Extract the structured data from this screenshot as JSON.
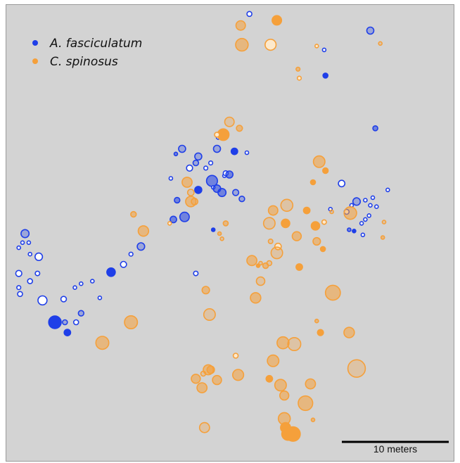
{
  "chart_data": {
    "type": "scatter",
    "title": "",
    "xlabel": "",
    "ylabel": "",
    "units": "meters",
    "xlim": [
      0,
      36.0
    ],
    "ylim": [
      0,
      35.6
    ],
    "legend": {
      "placement": "top-left",
      "entries": [
        {
          "name": "A. fasciculatum",
          "color": "#1f3fe8"
        },
        {
          "name": "C. spinosus",
          "color": "#f5a03b"
        }
      ]
    },
    "scale_bar": {
      "label": "10 meters",
      "length": 10
    },
    "style": {
      "fill_levels": {
        "solid": 1.0,
        "medium": 0.55,
        "light": 0.3,
        "pale": 0.08
      },
      "series_colors": {
        "A. fasciculatum": {
          "stroke": "#1f3fe8",
          "fill": "#1f3fe8",
          "pale_fill": "#ffffff"
        },
        "C. spinosus": {
          "stroke": "#f5a03b",
          "fill": "#f5a03b",
          "pale_fill": "#fde9cc"
        }
      }
    },
    "series": [
      {
        "name": "A. fasciculatum",
        "points": [
          [
            19.5,
            34.9,
            0.2,
            "pale"
          ],
          [
            29.2,
            33.6,
            0.28,
            "light"
          ],
          [
            25.5,
            32.1,
            0.12,
            "pale"
          ],
          [
            25.6,
            30.1,
            0.2,
            "solid"
          ],
          [
            29.6,
            26.0,
            0.2,
            "medium"
          ],
          [
            17.0,
            25.3,
            0.16,
            "pale"
          ],
          [
            14.1,
            24.4,
            0.28,
            "light"
          ],
          [
            13.6,
            24.0,
            0.14,
            "medium"
          ],
          [
            16.9,
            24.4,
            0.28,
            "light"
          ],
          [
            15.4,
            23.8,
            0.28,
            "light"
          ],
          [
            18.3,
            24.2,
            0.26,
            "solid"
          ],
          [
            19.3,
            24.1,
            0.12,
            "pale"
          ],
          [
            15.2,
            23.3,
            0.22,
            "light"
          ],
          [
            16.4,
            23.3,
            0.16,
            "pale"
          ],
          [
            14.7,
            22.9,
            0.24,
            "pale"
          ],
          [
            16.0,
            22.9,
            0.16,
            "pale"
          ],
          [
            17.5,
            22.3,
            0.12,
            "pale"
          ],
          [
            17.6,
            22.5,
            0.2,
            "pale"
          ],
          [
            17.9,
            22.4,
            0.28,
            "medium"
          ],
          [
            13.2,
            22.1,
            0.12,
            "pale"
          ],
          [
            16.5,
            21.9,
            0.44,
            "medium"
          ],
          [
            16.6,
            21.4,
            0.12,
            "pale"
          ],
          [
            15.4,
            21.2,
            0.28,
            "solid"
          ],
          [
            16.9,
            21.3,
            0.3,
            "medium"
          ],
          [
            17.3,
            21.0,
            0.32,
            "medium"
          ],
          [
            18.4,
            21.0,
            0.24,
            "light"
          ],
          [
            13.7,
            20.4,
            0.22,
            "medium"
          ],
          [
            18.9,
            20.5,
            0.22,
            "light"
          ],
          [
            26.9,
            21.7,
            0.26,
            "pale"
          ],
          [
            30.6,
            21.2,
            0.1,
            "pale"
          ],
          [
            28.1,
            20.3,
            0.3,
            "light"
          ],
          [
            28.8,
            20.4,
            0.12,
            "pale"
          ],
          [
            29.4,
            20.6,
            0.14,
            "pale"
          ],
          [
            27.7,
            20.0,
            0.12,
            "pale"
          ],
          [
            29.2,
            20.0,
            0.14,
            "pale"
          ],
          [
            29.7,
            19.9,
            0.14,
            "pale"
          ],
          [
            26.0,
            19.7,
            0.12,
            "pale"
          ],
          [
            27.3,
            19.5,
            0.2,
            "pale"
          ],
          [
            29.1,
            19.2,
            0.14,
            "pale"
          ],
          [
            13.4,
            18.9,
            0.26,
            "medium"
          ],
          [
            14.3,
            19.1,
            0.38,
            "medium"
          ],
          [
            28.5,
            18.6,
            0.12,
            "pale"
          ],
          [
            28.8,
            18.9,
            0.12,
            "pale"
          ],
          [
            16.6,
            18.1,
            0.12,
            "solid"
          ],
          [
            27.5,
            18.1,
            0.14,
            "medium"
          ],
          [
            27.9,
            18.0,
            0.12,
            "solid"
          ],
          [
            28.6,
            17.7,
            0.12,
            "pale"
          ],
          [
            1.5,
            17.8,
            0.32,
            "light"
          ],
          [
            1.3,
            17.1,
            0.14,
            "pale"
          ],
          [
            1.8,
            17.1,
            0.12,
            "pale"
          ],
          [
            1.0,
            16.7,
            0.14,
            "pale"
          ],
          [
            1.9,
            16.2,
            0.14,
            "pale"
          ],
          [
            2.6,
            16.0,
            0.3,
            "pale"
          ],
          [
            10.8,
            16.8,
            0.3,
            "light"
          ],
          [
            10.0,
            16.2,
            0.16,
            "pale"
          ],
          [
            9.4,
            15.4,
            0.24,
            "pale"
          ],
          [
            8.4,
            14.8,
            0.34,
            "solid"
          ],
          [
            1.0,
            14.7,
            0.24,
            "pale"
          ],
          [
            2.5,
            14.7,
            0.18,
            "pale"
          ],
          [
            15.2,
            14.7,
            0.18,
            "pale"
          ],
          [
            6.9,
            14.1,
            0.12,
            "pale"
          ],
          [
            1.9,
            14.1,
            0.2,
            "pale"
          ],
          [
            6.0,
            13.9,
            0.12,
            "pale"
          ],
          [
            5.5,
            13.6,
            0.12,
            "pale"
          ],
          [
            1.0,
            13.6,
            0.16,
            "pale"
          ],
          [
            1.1,
            13.1,
            0.2,
            "pale"
          ],
          [
            2.9,
            12.6,
            0.36,
            "pale"
          ],
          [
            4.6,
            12.7,
            0.22,
            "pale"
          ],
          [
            7.5,
            12.8,
            0.12,
            "pale"
          ],
          [
            6.0,
            11.6,
            0.22,
            "light"
          ],
          [
            3.9,
            10.9,
            0.5,
            "solid"
          ],
          [
            4.7,
            10.9,
            0.2,
            "light"
          ],
          [
            5.6,
            10.9,
            0.2,
            "pale"
          ],
          [
            4.9,
            10.1,
            0.26,
            "solid"
          ]
        ]
      },
      {
        "name": "C. spinosus",
        "points": [
          [
            18.8,
            34.0,
            0.38,
            "medium"
          ],
          [
            21.7,
            34.4,
            0.38,
            "solid"
          ],
          [
            18.9,
            32.5,
            0.5,
            "medium"
          ],
          [
            21.2,
            32.5,
            0.44,
            "pale"
          ],
          [
            24.9,
            32.4,
            0.12,
            "pale"
          ],
          [
            30.0,
            32.6,
            0.14,
            "light"
          ],
          [
            23.4,
            30.6,
            0.16,
            "medium"
          ],
          [
            23.5,
            29.9,
            0.16,
            "pale"
          ],
          [
            17.9,
            26.5,
            0.38,
            "light"
          ],
          [
            18.7,
            26.0,
            0.24,
            "medium"
          ],
          [
            17.4,
            25.5,
            0.46,
            "solid"
          ],
          [
            16.9,
            25.5,
            0.2,
            "pale"
          ],
          [
            25.1,
            23.4,
            0.46,
            "medium"
          ],
          [
            25.6,
            22.7,
            0.22,
            "solid"
          ],
          [
            24.6,
            21.8,
            0.2,
            "solid"
          ],
          [
            14.5,
            21.8,
            0.4,
            "medium"
          ],
          [
            14.8,
            21.0,
            0.26,
            "light"
          ],
          [
            14.8,
            20.3,
            0.42,
            "medium"
          ],
          [
            15.1,
            20.3,
            0.26,
            "light"
          ],
          [
            22.5,
            20.0,
            0.48,
            "light"
          ],
          [
            21.4,
            19.6,
            0.38,
            "medium"
          ],
          [
            24.1,
            19.6,
            0.26,
            "solid"
          ],
          [
            27.6,
            19.4,
            0.5,
            "medium"
          ],
          [
            26.1,
            19.5,
            0.14,
            "light"
          ],
          [
            10.2,
            19.3,
            0.22,
            "medium"
          ],
          [
            22.4,
            18.6,
            0.34,
            "solid"
          ],
          [
            21.1,
            18.6,
            0.46,
            "light"
          ],
          [
            17.6,
            18.6,
            0.2,
            "medium"
          ],
          [
            13.1,
            18.6,
            0.14,
            "pale"
          ],
          [
            24.8,
            18.4,
            0.34,
            "solid"
          ],
          [
            25.5,
            18.7,
            0.18,
            "pale"
          ],
          [
            30.3,
            18.7,
            0.14,
            "light"
          ],
          [
            11.0,
            18.0,
            0.42,
            "medium"
          ],
          [
            23.3,
            17.6,
            0.36,
            "medium"
          ],
          [
            17.1,
            17.8,
            0.14,
            "medium"
          ],
          [
            17.3,
            17.4,
            0.12,
            "light"
          ],
          [
            24.9,
            17.2,
            0.3,
            "medium"
          ],
          [
            30.2,
            17.5,
            0.1,
            "medium"
          ],
          [
            21.2,
            17.2,
            0.18,
            "light"
          ],
          [
            21.8,
            16.8,
            0.26,
            "pale"
          ],
          [
            25.4,
            16.6,
            0.2,
            "solid"
          ],
          [
            21.7,
            16.3,
            0.46,
            "light"
          ],
          [
            19.7,
            15.7,
            0.4,
            "medium"
          ],
          [
            21.1,
            15.5,
            0.2,
            "light"
          ],
          [
            20.2,
            15.3,
            0.14,
            "solid"
          ],
          [
            20.8,
            15.3,
            0.22,
            "medium"
          ],
          [
            20.4,
            15.5,
            0.14,
            "light"
          ],
          [
            23.5,
            15.2,
            0.26,
            "solid"
          ],
          [
            20.4,
            14.1,
            0.34,
            "light"
          ],
          [
            16.0,
            13.4,
            0.3,
            "medium"
          ],
          [
            26.2,
            13.2,
            0.6,
            "medium"
          ],
          [
            20.0,
            12.8,
            0.42,
            "medium"
          ],
          [
            16.3,
            11.5,
            0.46,
            "light"
          ],
          [
            24.9,
            11.0,
            0.12,
            "medium"
          ],
          [
            25.2,
            10.1,
            0.24,
            "solid"
          ],
          [
            27.5,
            10.1,
            0.42,
            "medium"
          ],
          [
            10.0,
            10.9,
            0.52,
            "medium"
          ],
          [
            7.7,
            9.3,
            0.52,
            "medium"
          ],
          [
            22.2,
            9.3,
            0.48,
            "medium"
          ],
          [
            23.1,
            9.2,
            0.52,
            "light"
          ],
          [
            18.4,
            8.3,
            0.2,
            "pale"
          ],
          [
            21.4,
            7.9,
            0.46,
            "medium"
          ],
          [
            28.1,
            7.3,
            0.7,
            "light"
          ],
          [
            16.2,
            7.2,
            0.4,
            "medium"
          ],
          [
            16.4,
            7.2,
            0.3,
            "medium"
          ],
          [
            15.8,
            6.9,
            0.2,
            "light"
          ],
          [
            18.6,
            6.8,
            0.44,
            "medium"
          ],
          [
            15.2,
            6.5,
            0.36,
            "medium"
          ],
          [
            16.9,
            6.4,
            0.36,
            "medium"
          ],
          [
            21.1,
            6.5,
            0.26,
            "solid"
          ],
          [
            22.0,
            6.0,
            0.46,
            "medium"
          ],
          [
            24.4,
            6.1,
            0.4,
            "medium"
          ],
          [
            15.7,
            5.8,
            0.4,
            "medium"
          ],
          [
            22.3,
            5.2,
            0.36,
            "medium"
          ],
          [
            24.0,
            4.6,
            0.58,
            "medium"
          ],
          [
            22.3,
            3.4,
            0.48,
            "medium"
          ],
          [
            24.6,
            3.3,
            0.14,
            "medium"
          ],
          [
            15.9,
            2.7,
            0.4,
            "light"
          ],
          [
            22.4,
            2.7,
            0.4,
            "solid"
          ],
          [
            22.6,
            2.2,
            0.5,
            "solid"
          ],
          [
            23.0,
            2.2,
            0.58,
            "solid"
          ]
        ]
      }
    ]
  }
}
